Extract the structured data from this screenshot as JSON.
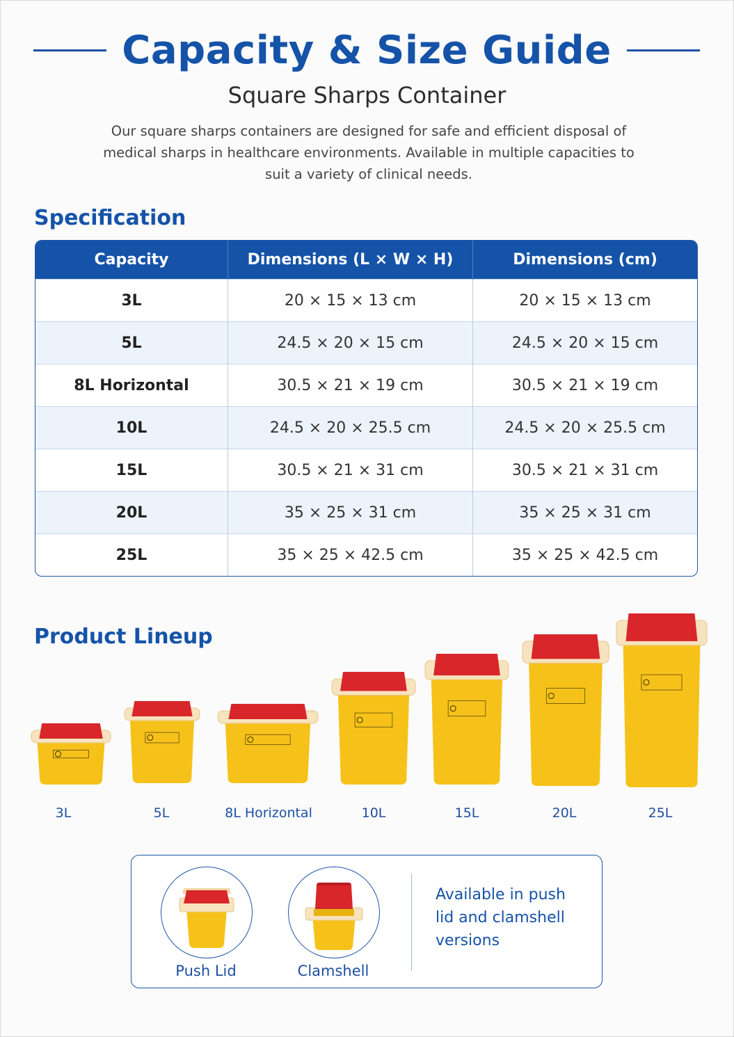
{
  "header": {
    "title": "Capacity & Size Guide",
    "subtitle": "Square Sharps Container",
    "intro": "Our square sharps containers are designed for safe and efficient disposal of medical sharps in healthcare environments. Available in multiple capacities to suit a variety of clinical needs."
  },
  "specification": {
    "heading": "Specification",
    "columns": [
      "Capacity",
      "Dimensions (L × W × H)",
      "Dimensions (cm)"
    ],
    "rows": [
      [
        "3L",
        "20 × 15 × 13 cm",
        "20 × 15 × 13 cm"
      ],
      [
        "5L",
        "24.5 × 20 × 15 cm",
        "24.5 × 20 × 15 cm"
      ],
      [
        "8L Horizontal",
        "30.5 × 21 × 19 cm",
        "30.5 × 21 × 19 cm"
      ],
      [
        "10L",
        "24.5 × 20 × 25.5 cm",
        "24.5 × 20 × 25.5 cm"
      ],
      [
        "15L",
        "30.5 × 21 × 31 cm",
        "30.5 × 21 × 31 cm"
      ],
      [
        "20L",
        "35 × 25 × 31 cm",
        "35 × 25 × 31 cm"
      ],
      [
        "25L",
        "35 × 25 × 42.5 cm",
        "35 × 25 × 42.5 cm"
      ]
    ]
  },
  "lineup": {
    "heading": "Product Lineup",
    "products": [
      "3L",
      "5L",
      "8L Horizontal",
      "10L",
      "15L",
      "20L",
      "25L"
    ]
  },
  "options": {
    "push_lid": "Push Lid",
    "clamshell": "Clamshell",
    "availability": "Available in push lid and clamshell versions"
  },
  "colors": {
    "brand_blue": "#1553a8",
    "container_yellow": "#f6c21a",
    "lid_red": "#d8262a",
    "rim_cream": "#f7e3bd"
  },
  "icons": [
    "biohazard-label-icon",
    "sharps-container-icon",
    "red-lid-icon"
  ]
}
